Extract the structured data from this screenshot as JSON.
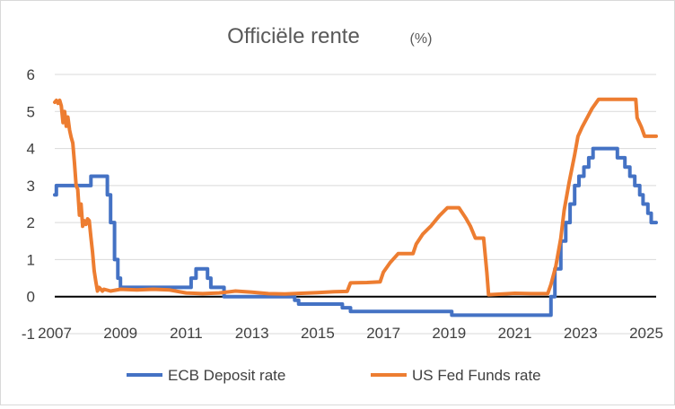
{
  "chart_data": {
    "type": "line",
    "title": "Officiële rente",
    "title_unit": "(%)",
    "xlabel": "",
    "ylabel": "",
    "xlim": [
      2007,
      2025.3
    ],
    "ylim": [
      -1,
      6
    ],
    "x_ticks": [
      "2007",
      "2009",
      "2011",
      "2013",
      "2015",
      "2017",
      "2019",
      "2021",
      "2023",
      "2025"
    ],
    "y_ticks": [
      "-1",
      "0",
      "1",
      "2",
      "3",
      "4",
      "5",
      "6"
    ],
    "grid": "horizontal",
    "zero_line": true,
    "legend": "bottom",
    "series": [
      {
        "name": "ECB Deposit rate",
        "color": "#4472c4",
        "step": true,
        "points": [
          [
            2007.0,
            2.75
          ],
          [
            2007.05,
            3.0
          ],
          [
            2008.05,
            3.0
          ],
          [
            2008.1,
            3.25
          ],
          [
            2008.5,
            3.25
          ],
          [
            2008.6,
            2.75
          ],
          [
            2008.7,
            2.0
          ],
          [
            2008.82,
            1.0
          ],
          [
            2008.92,
            0.5
          ],
          [
            2009.0,
            0.25
          ],
          [
            2011.0,
            0.25
          ],
          [
            2011.15,
            0.5
          ],
          [
            2011.3,
            0.75
          ],
          [
            2011.52,
            0.75
          ],
          [
            2011.65,
            0.5
          ],
          [
            2011.75,
            0.25
          ],
          [
            2012.08,
            0.25
          ],
          [
            2012.15,
            0.0
          ],
          [
            2014.2,
            0.0
          ],
          [
            2014.3,
            -0.1
          ],
          [
            2014.42,
            -0.2
          ],
          [
            2015.55,
            -0.2
          ],
          [
            2015.75,
            -0.3
          ],
          [
            2016.0,
            -0.4
          ],
          [
            2019.0,
            -0.4
          ],
          [
            2019.08,
            -0.5
          ],
          [
            2022.05,
            -0.5
          ],
          [
            2022.1,
            0.0
          ],
          [
            2022.22,
            0.75
          ],
          [
            2022.4,
            1.5
          ],
          [
            2022.55,
            2.0
          ],
          [
            2022.68,
            2.5
          ],
          [
            2022.82,
            3.0
          ],
          [
            2022.95,
            3.25
          ],
          [
            2023.1,
            3.5
          ],
          [
            2023.25,
            3.75
          ],
          [
            2023.38,
            4.0
          ],
          [
            2024.0,
            4.0
          ],
          [
            2024.12,
            3.75
          ],
          [
            2024.35,
            3.5
          ],
          [
            2024.5,
            3.25
          ],
          [
            2024.65,
            3.0
          ],
          [
            2024.8,
            2.75
          ],
          [
            2024.9,
            2.5
          ],
          [
            2025.05,
            2.25
          ],
          [
            2025.15,
            2.0
          ],
          [
            2025.3,
            2.0
          ]
        ]
      },
      {
        "name": "US Fed Funds rate",
        "color": "#ed7d31",
        "step": false,
        "points": [
          [
            2007.0,
            5.25
          ],
          [
            2007.05,
            5.3
          ],
          [
            2007.1,
            5.22
          ],
          [
            2007.15,
            5.3
          ],
          [
            2007.2,
            5.15
          ],
          [
            2007.25,
            4.7
          ],
          [
            2007.3,
            5.0
          ],
          [
            2007.35,
            4.6
          ],
          [
            2007.4,
            4.85
          ],
          [
            2007.45,
            4.5
          ],
          [
            2007.5,
            4.3
          ],
          [
            2007.55,
            4.15
          ],
          [
            2007.6,
            3.6
          ],
          [
            2007.65,
            3.0
          ],
          [
            2007.7,
            2.9
          ],
          [
            2007.75,
            2.2
          ],
          [
            2007.8,
            2.5
          ],
          [
            2007.85,
            1.9
          ],
          [
            2007.9,
            2.05
          ],
          [
            2007.95,
            1.95
          ],
          [
            2008.0,
            2.1
          ],
          [
            2008.05,
            2.05
          ],
          [
            2008.1,
            1.6
          ],
          [
            2008.15,
            1.2
          ],
          [
            2008.2,
            0.7
          ],
          [
            2008.25,
            0.4
          ],
          [
            2008.3,
            0.15
          ],
          [
            2008.35,
            0.25
          ],
          [
            2008.45,
            0.15
          ],
          [
            2008.5,
            0.2
          ],
          [
            2008.7,
            0.15
          ],
          [
            2009.0,
            0.2
          ],
          [
            2009.5,
            0.18
          ],
          [
            2010.0,
            0.2
          ],
          [
            2010.5,
            0.18
          ],
          [
            2011.0,
            0.1
          ],
          [
            2011.5,
            0.08
          ],
          [
            2012.0,
            0.1
          ],
          [
            2012.5,
            0.15
          ],
          [
            2013.0,
            0.12
          ],
          [
            2013.5,
            0.08
          ],
          [
            2014.0,
            0.07
          ],
          [
            2014.5,
            0.09
          ],
          [
            2015.0,
            0.11
          ],
          [
            2015.5,
            0.13
          ],
          [
            2015.9,
            0.14
          ],
          [
            2016.0,
            0.37
          ],
          [
            2016.5,
            0.38
          ],
          [
            2016.9,
            0.4
          ],
          [
            2017.0,
            0.66
          ],
          [
            2017.2,
            0.91
          ],
          [
            2017.45,
            1.16
          ],
          [
            2017.9,
            1.16
          ],
          [
            2018.0,
            1.42
          ],
          [
            2018.2,
            1.69
          ],
          [
            2018.45,
            1.91
          ],
          [
            2018.7,
            2.18
          ],
          [
            2018.95,
            2.4
          ],
          [
            2019.3,
            2.4
          ],
          [
            2019.5,
            2.13
          ],
          [
            2019.65,
            1.9
          ],
          [
            2019.8,
            1.58
          ],
          [
            2020.05,
            1.58
          ],
          [
            2020.15,
            0.65
          ],
          [
            2020.2,
            0.05
          ],
          [
            2021.0,
            0.09
          ],
          [
            2021.5,
            0.08
          ],
          [
            2022.0,
            0.08
          ],
          [
            2022.1,
            0.33
          ],
          [
            2022.25,
            0.83
          ],
          [
            2022.4,
            1.58
          ],
          [
            2022.5,
            2.33
          ],
          [
            2022.65,
            3.08
          ],
          [
            2022.82,
            3.83
          ],
          [
            2022.92,
            4.33
          ],
          [
            2023.05,
            4.58
          ],
          [
            2023.2,
            4.83
          ],
          [
            2023.35,
            5.08
          ],
          [
            2023.55,
            5.33
          ],
          [
            2024.68,
            5.33
          ],
          [
            2024.72,
            4.83
          ],
          [
            2024.85,
            4.58
          ],
          [
            2024.95,
            4.33
          ],
          [
            2025.3,
            4.33
          ]
        ]
      }
    ]
  }
}
